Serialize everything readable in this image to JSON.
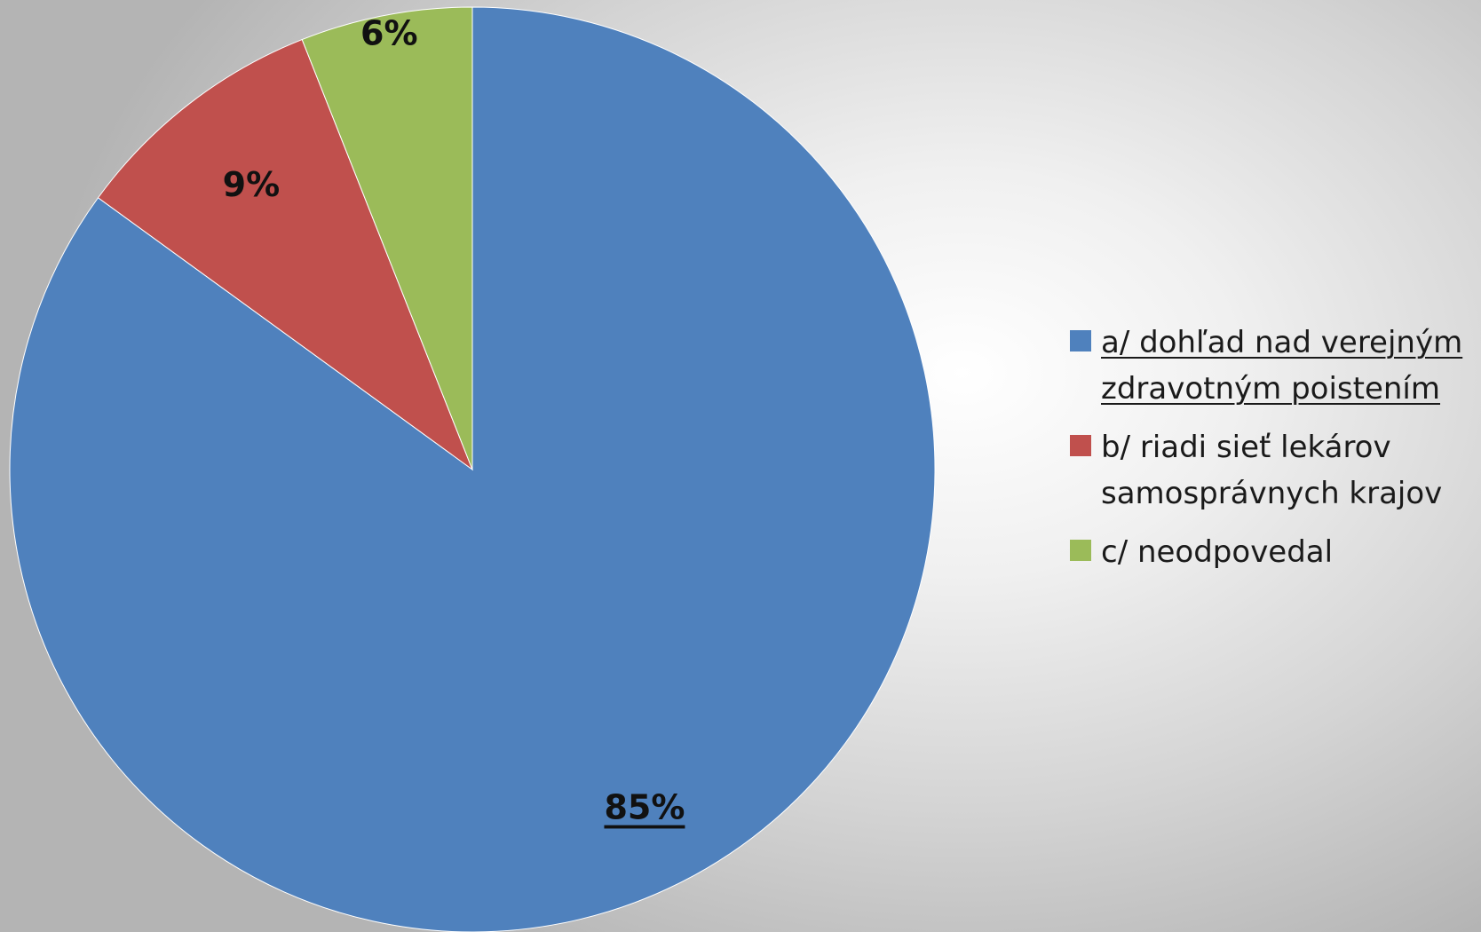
{
  "chart_data": {
    "type": "pie",
    "start_angle": "top",
    "direction": "clockwise",
    "slices": [
      {
        "label": "a/ dohľad nad verejným zdravotným poistením",
        "legend_lines": [
          "a/ dohľad nad verejným",
          "zdravotným poistením"
        ],
        "value": 85,
        "data_label": "85%",
        "color": "#4f81bd",
        "underlined": true
      },
      {
        "label": "b/ riadi sieť lekárov samosprávnych krajov",
        "legend_lines": [
          "b/ riadi sieť lekárov",
          "samosprávnych krajov"
        ],
        "value": 9,
        "data_label": "9%",
        "color": "#c0504d",
        "underlined": false
      },
      {
        "label": "c/ neodpovedal",
        "legend_lines": [
          "c/ neodpovedal"
        ],
        "value": 6,
        "data_label": "6%",
        "color": "#9bbb59",
        "underlined": false
      }
    ],
    "legend_position": "right"
  }
}
